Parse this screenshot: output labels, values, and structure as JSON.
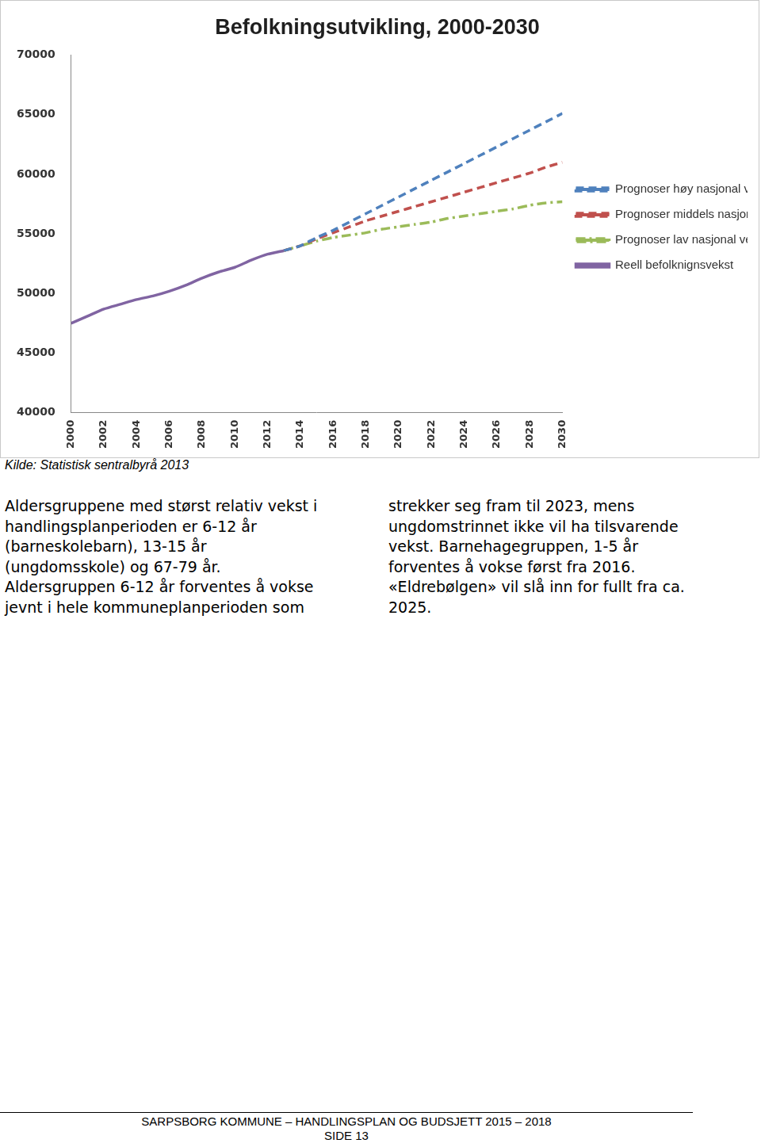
{
  "chart_data": {
    "type": "line",
    "title": "Befolkningsutvikling, 2000-2030",
    "x": [
      2000,
      2001,
      2002,
      2003,
      2004,
      2005,
      2006,
      2007,
      2008,
      2009,
      2010,
      2011,
      2012,
      2013,
      2014,
      2015,
      2016,
      2017,
      2018,
      2019,
      2020,
      2021,
      2022,
      2023,
      2024,
      2025,
      2026,
      2027,
      2028,
      2029,
      2030
    ],
    "series": [
      {
        "name": "Prognoser høy nasjonal vekst",
        "color": "#4f81bd",
        "line_style": "dashed",
        "values": [
          null,
          null,
          null,
          null,
          null,
          null,
          null,
          null,
          null,
          null,
          null,
          null,
          null,
          53600,
          54000,
          54700,
          55300,
          56000,
          56700,
          57400,
          58100,
          58800,
          59500,
          60200,
          60900,
          61600,
          62300,
          63000,
          63700,
          64400,
          65100
        ]
      },
      {
        "name": "Prognoser middels nasjonal vekst",
        "color": "#c0504d",
        "line_style": "dashed",
        "values": [
          null,
          null,
          null,
          null,
          null,
          null,
          null,
          null,
          null,
          null,
          null,
          null,
          null,
          53600,
          54000,
          54600,
          55100,
          55600,
          56100,
          56500,
          56900,
          57300,
          57700,
          58100,
          58500,
          58900,
          59300,
          59700,
          60100,
          60600,
          61000
        ]
      },
      {
        "name": "Prognoser lav nasjonal vekst",
        "color": "#9bbb59",
        "line_style": "dashdot",
        "values": [
          null,
          null,
          null,
          null,
          null,
          null,
          null,
          null,
          null,
          null,
          null,
          null,
          null,
          53600,
          54000,
          54400,
          54700,
          54900,
          55100,
          55400,
          55600,
          55800,
          56000,
          56300,
          56500,
          56700,
          56900,
          57100,
          57400,
          57600,
          57700
        ]
      },
      {
        "name": "Reell befolknignsvekst",
        "color": "#8064a2",
        "line_style": "solid",
        "values": [
          47500,
          48100,
          48700,
          49100,
          49500,
          49800,
          50200,
          50700,
          51300,
          51800,
          52200,
          52800,
          53300,
          53600,
          null,
          null,
          null,
          null,
          null,
          null,
          null,
          null,
          null,
          null,
          null,
          null,
          null,
          null,
          null,
          null,
          null
        ]
      }
    ],
    "xlim": [
      2000,
      2030
    ],
    "xticks": [
      2000,
      2002,
      2004,
      2006,
      2008,
      2010,
      2012,
      2014,
      2016,
      2018,
      2020,
      2022,
      2024,
      2026,
      2028,
      2030
    ],
    "ylim": [
      40000,
      70000
    ],
    "yticks": [
      40000,
      45000,
      50000,
      55000,
      60000,
      65000,
      70000
    ],
    "grid": false,
    "legend": "right"
  },
  "caption": "Kilde: Statistisk sentralbyrå 2013",
  "columns": [
    [
      "Aldersgruppene med størst relativ vekst i",
      "handlingsplanperioden er 6-12 år",
      "(barneskolebarn), 13-15 år",
      "(ungdomsskole) og 67-79 år.",
      "Aldersgruppen 6-12 år forventes å vokse",
      "jevnt i hele kommuneplanperioden som"
    ],
    [
      "strekker seg fram til 2023, mens",
      "ungdomstrinnet ikke vil ha tilsvarende",
      "vekst. Barnehagegruppen, 1-5 år",
      "forventes å vokse først fra 2016.",
      "«Eldrebølgen» vil slå inn for fullt fra ca.",
      "2025."
    ]
  ],
  "footer": {
    "line1": "SARPSBORG KOMMUNE – HANDLINGSPLAN OG BUDSJETT 2015 – 2018",
    "line2": "SIDE 13"
  }
}
